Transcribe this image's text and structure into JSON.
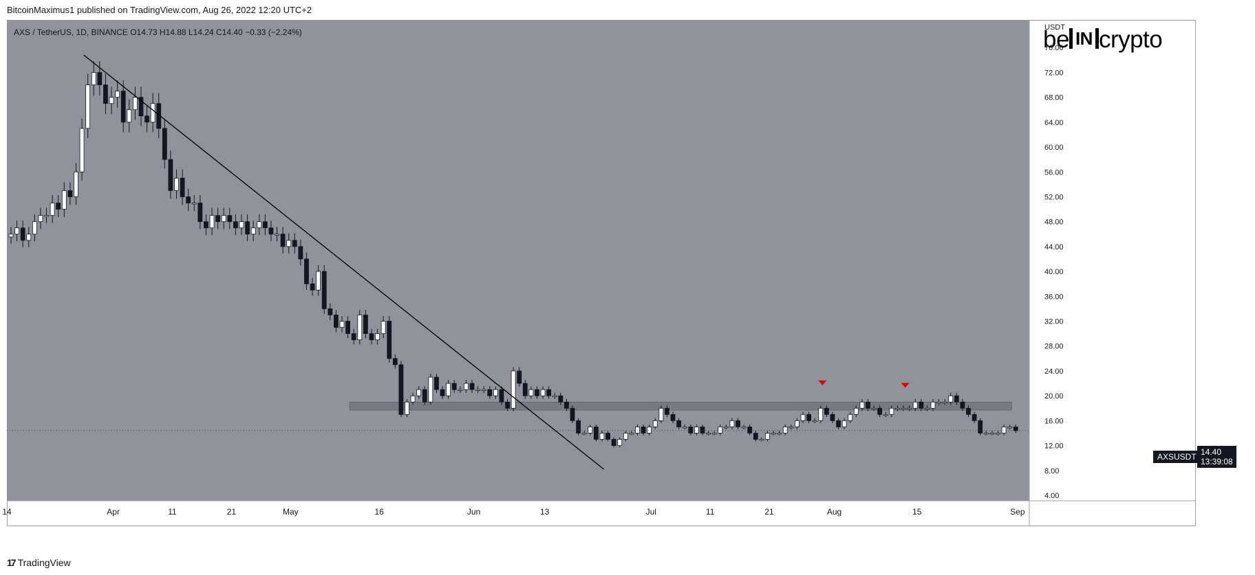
{
  "header": {
    "publisher": "BitcoinMaximus1 published on TradingView.com, Aug 26, 2022 12:20 UTC+2"
  },
  "symbol": {
    "title": "AXS / TetherUS, 1D, BINANCE",
    "o_label": "O",
    "o": "14.73",
    "h_label": "H",
    "h": "14.88",
    "l_label": "L",
    "l": "14.24",
    "c_label": "C",
    "c": "14.40",
    "change": "−0.33 (−2.24%)"
  },
  "logo": {
    "left": "be",
    "mid": "IN",
    "right": "crypto"
  },
  "footer": {
    "brand": "TradingView",
    "icon": "tradingview-logo-icon"
  },
  "price_tag": {
    "name": "AXSUSDT",
    "price": "14.40",
    "countdown": "13:39:08"
  },
  "colors": {
    "background": "#90939b",
    "up": "#ffffff",
    "down": "#131722",
    "marker": "#e00000",
    "zone": "#6f7278"
  },
  "chart_data": {
    "type": "candlestick",
    "title": "AXS / TetherUS, 1D, BINANCE",
    "y_axis_label": "USDT",
    "ylim": [
      4,
      80
    ],
    "y_ticks": [
      "76.00",
      "72.00",
      "68.00",
      "64.00",
      "60.00",
      "56.00",
      "52.00",
      "48.00",
      "44.00",
      "40.00",
      "36.00",
      "32.00",
      "28.00",
      "24.00",
      "20.00",
      "16.00",
      "12.00",
      "8.00",
      "4.00"
    ],
    "x_ticks": [
      "14",
      "Apr",
      "11",
      "21",
      "May",
      "16",
      "Jun",
      "13",
      "Jul",
      "11",
      "21",
      "Aug",
      "15",
      "Sep"
    ],
    "x_tick_dates": [
      "2022-03-14",
      "2022-04-01",
      "2022-04-11",
      "2022-04-21",
      "2022-05-01",
      "2022-05-16",
      "2022-06-01",
      "2022-06-13",
      "2022-07-01",
      "2022-07-11",
      "2022-07-21",
      "2022-08-01",
      "2022-08-15",
      "2022-09-01"
    ],
    "x_range": [
      "2022-03-14",
      "2022-09-03"
    ],
    "close": [
      46,
      47,
      45,
      46,
      48,
      49,
      49,
      51,
      50,
      53,
      52,
      56,
      63,
      70,
      72,
      70,
      67,
      68,
      69,
      64,
      66,
      68,
      65,
      64,
      67,
      63,
      58,
      53,
      55,
      52,
      51,
      51,
      48,
      47,
      49,
      48,
      49,
      48,
      47,
      48,
      46,
      47,
      48,
      47,
      46,
      46,
      44,
      45,
      44,
      42,
      38,
      37,
      40,
      34,
      33,
      31,
      32,
      30,
      29,
      33,
      30,
      29,
      30,
      32,
      26,
      25,
      17,
      19,
      20,
      21,
      19,
      23,
      21,
      20,
      22,
      21,
      21,
      22,
      21,
      21,
      21,
      20,
      21,
      19,
      18,
      24,
      22,
      20,
      21,
      20,
      21,
      20,
      20,
      19,
      18,
      16,
      14,
      14,
      15,
      13,
      14,
      13,
      12,
      13,
      14,
      14,
      15,
      14,
      15,
      16,
      18,
      17,
      16,
      15,
      15,
      14,
      15,
      14,
      14,
      14,
      15,
      15,
      16,
      15,
      15,
      14,
      13,
      13,
      14,
      14,
      14,
      15,
      15,
      16,
      17,
      16,
      16,
      18,
      17,
      16,
      15,
      16,
      17,
      18,
      19,
      18,
      18,
      17,
      17,
      18,
      18,
      18,
      18,
      19,
      18,
      18,
      19,
      19,
      19,
      20,
      19,
      18,
      17,
      16,
      14,
      14,
      14,
      14,
      15,
      15,
      14.4
    ],
    "zone": {
      "low": 17.7,
      "high": 19.0,
      "start": "2022-05-11",
      "end": "2022-08-31"
    },
    "trendline": [
      [
        "2022-03-27",
        74.8
      ],
      [
        "2022-06-23",
        8.2
      ]
    ],
    "resistance_markers": [
      [
        "2022-07-30",
        20.6
      ],
      [
        "2022-08-13",
        20.2
      ]
    ]
  }
}
